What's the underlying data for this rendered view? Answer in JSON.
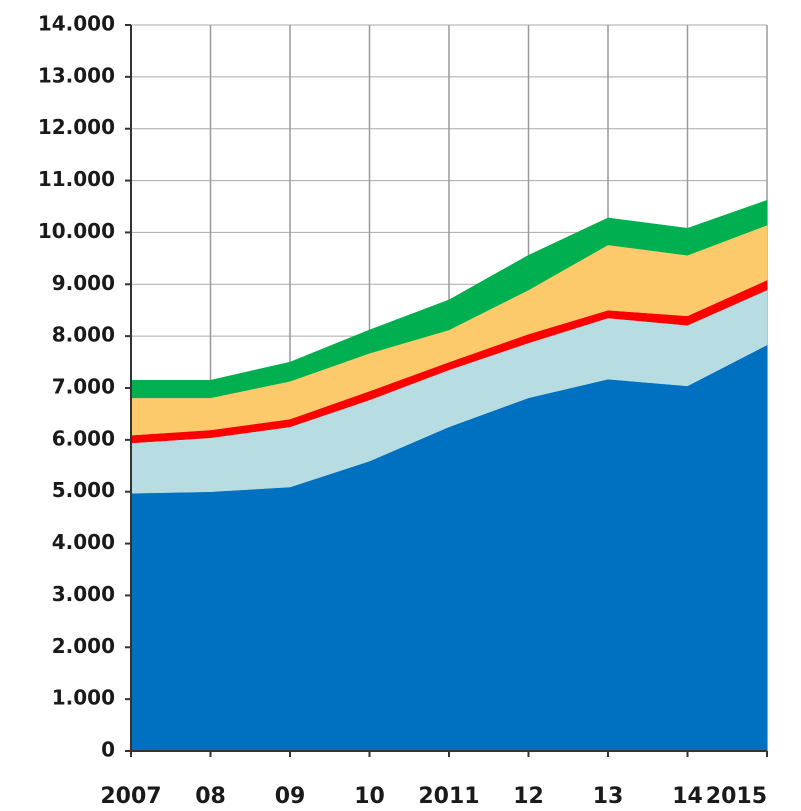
{
  "chart_data": {
    "type": "stacked_area",
    "categories": [
      "2007",
      "08",
      "09",
      "10",
      "2011",
      "12",
      "13",
      "14",
      "2015"
    ],
    "series": [
      {
        "color": "#0070c0",
        "values": [
          4970,
          5000,
          5090,
          5590,
          6250,
          6810,
          7170,
          7040,
          7830
        ]
      },
      {
        "color": "#b7dde3",
        "values": [
          970,
          1040,
          1160,
          1180,
          1100,
          1060,
          1180,
          1170,
          1060
        ]
      },
      {
        "color": "#ff0000",
        "values": [
          150,
          150,
          150,
          170,
          150,
          170,
          150,
          180,
          190
        ]
      },
      {
        "color": "#fcc96b",
        "values": [
          720,
          620,
          730,
          730,
          620,
          850,
          1260,
          1170,
          1060
        ]
      },
      {
        "color": "#00b050",
        "values": [
          340,
          340,
          370,
          450,
          580,
          670,
          520,
          520,
          480
        ]
      }
    ],
    "ylim": [
      0,
      14000
    ],
    "yticks": [
      0,
      {
        "value": 1000,
        "label": "1.000"
      },
      {
        "value": 2000,
        "label": "2.000"
      },
      {
        "value": 3000,
        "label": "3.000"
      },
      {
        "value": 4000,
        "label": "4.000"
      },
      {
        "value": 5000,
        "label": "5.000"
      },
      {
        "value": 6000,
        "label": "6.000"
      },
      {
        "value": 7000,
        "label": "7.000"
      },
      {
        "value": 8000,
        "label": "8.000"
      },
      {
        "value": 9000,
        "label": "9.000"
      },
      {
        "value": 10000,
        "label": "10.000"
      },
      {
        "value": 11000,
        "label": "11.000"
      },
      {
        "value": 12000,
        "label": "12.000"
      },
      {
        "value": 13000,
        "label": "13.000"
      },
      {
        "value": 14000,
        "label": "14.000"
      }
    ],
    "grid": true
  }
}
